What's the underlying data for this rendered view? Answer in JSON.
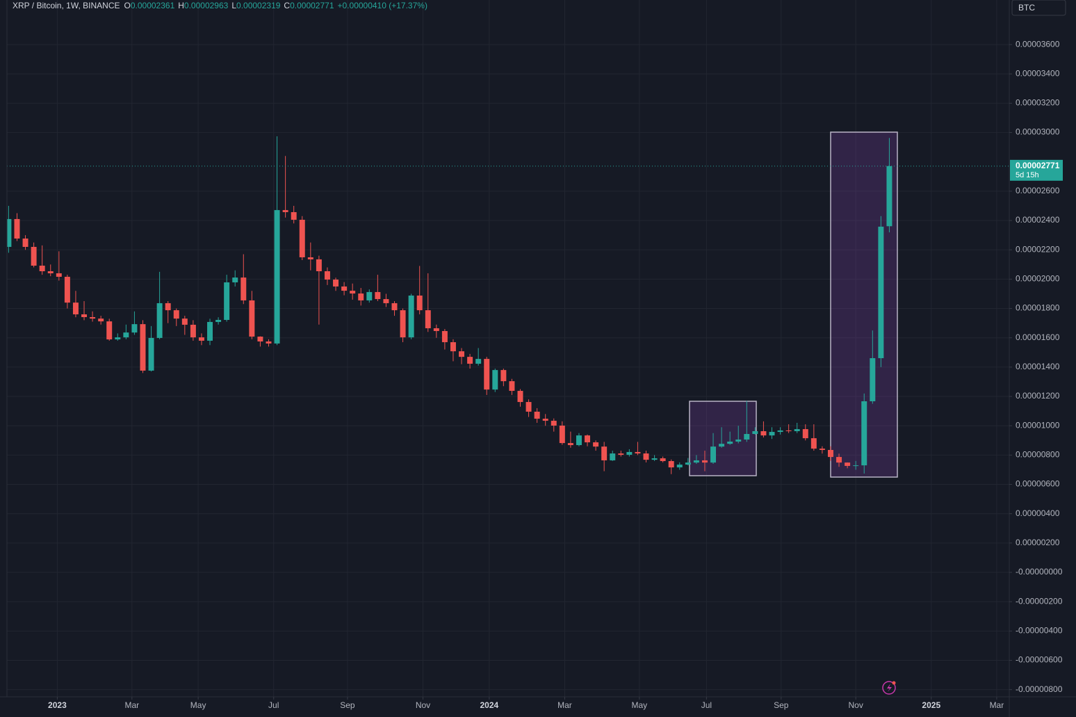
{
  "chart_data": {
    "type": "candlestick",
    "title": "XRP / Bitcoin, 1W, BINANCE",
    "ohlc_legend": [
      {
        "key": "O",
        "value": "0.00002361"
      },
      {
        "key": "H",
        "value": "0.00002963"
      },
      {
        "key": "L",
        "value": "0.00002319"
      },
      {
        "key": "C",
        "value": "0.00002771"
      }
    ],
    "change": "+0.00000410 (+17.37%)",
    "currency": "BTC",
    "price_tag": {
      "label": "0.00002771",
      "countdown": "5d 15h"
    },
    "up_color": "#26a69a",
    "down_color": "#ef5350",
    "grid": true,
    "log_scale": false,
    "x": [
      0,
      1,
      2,
      3,
      4,
      5,
      6,
      7,
      8,
      9,
      10,
      11,
      12,
      13,
      14,
      15,
      16,
      17,
      18,
      19,
      20,
      21,
      22,
      23,
      24,
      25,
      26,
      27,
      28,
      29,
      30,
      31,
      32,
      33,
      34,
      35,
      36,
      37,
      38,
      39,
      40,
      41,
      42,
      43,
      44,
      45,
      46,
      47,
      48,
      49,
      50,
      51,
      52,
      53,
      54,
      55,
      56,
      57,
      58,
      59,
      60,
      61,
      62,
      63,
      64,
      65,
      66,
      67,
      68,
      69,
      70,
      71,
      72,
      73,
      74,
      75,
      76,
      77,
      78,
      79,
      80,
      81,
      82,
      83,
      84,
      85,
      86,
      87,
      88,
      89,
      90,
      91,
      92,
      93,
      94,
      95,
      96,
      97,
      98,
      99,
      100,
      101,
      102,
      103,
      104,
      105
    ],
    "open": [
      2.22e-05,
      2.41e-05,
      2.277e-05,
      2.22e-05,
      2.092e-05,
      2.054e-05,
      2.04e-05,
      2.016e-05,
      1.84e-05,
      1.76e-05,
      1.741e-05,
      1.731e-05,
      1.712e-05,
      1.589e-05,
      1.603e-05,
      1.636e-05,
      1.693e-05,
      1.376e-05,
      1.599e-05,
      1.836e-05,
      1.788e-05,
      1.731e-05,
      1.689e-05,
      1.603e-05,
      1.58e-05,
      1.708e-05,
      1.722e-05,
      1.978e-05,
      2.011e-05,
      1.855e-05,
      1.608e-05,
      1.575e-05,
      1.561e-05,
      2.471e-05,
      2.457e-05,
      2.405e-05,
      2.149e-05,
      2.135e-05,
      2.054e-05,
      1.997e-05,
      1.95e-05,
      1.921e-05,
      1.902e-05,
      1.855e-05,
      1.912e-05,
      1.864e-05,
      1.836e-05,
      1.788e-05,
      1.603e-05,
      1.888e-05,
      1.788e-05,
      1.665e-05,
      1.646e-05,
      1.57e-05,
      1.508e-05,
      1.47e-05,
      1.423e-05,
      1.456e-05,
      1.247e-05,
      1.38e-05,
      1.304e-05,
      1.238e-05,
      1.162e-05,
      1.096e-05,
      1.048e-05,
      1.034e-05,
      1.001e-05,
      8.82e-06,
      8.68e-06,
      9.34e-06,
      8.87e-06,
      8.58e-06,
      7.64e-06,
      8.11e-06,
      8.02e-06,
      8.21e-06,
      8.11e-06,
      7.68e-06,
      7.78e-06,
      7.59e-06,
      7.16e-06,
      7.35e-06,
      7.49e-06,
      7.64e-06,
      7.49e-06,
      8.58e-06,
      8.77e-06,
      8.92e-06,
      9.06e-06,
      9.44e-06,
      9.63e-06,
      9.34e-06,
      9.58e-06,
      9.68e-06,
      9.63e-06,
      9.77e-06,
      9.15e-06,
      8.44e-06,
      8.35e-06,
      7.87e-06,
      7.49e-06,
      7.26e-06,
      7.3e-06,
      1.167e-05,
      1.461e-05,
      2.361e-05
    ],
    "high": [
      2.5e-05,
      2.45e-05,
      2.3e-05,
      2.25e-05,
      2.23e-05,
      2.1e-05,
      2.19e-05,
      2.03e-05,
      1.92e-05,
      1.85e-05,
      1.78e-05,
      1.75e-05,
      1.73e-05,
      1.63e-05,
      1.69e-05,
      1.78e-05,
      1.72e-05,
      1.68e-05,
      2.05e-05,
      1.85e-05,
      1.8e-05,
      1.75e-05,
      1.72e-05,
      1.63e-05,
      1.73e-05,
      1.74e-05,
      2.03e-05,
      2.06e-05,
      2.17e-05,
      1.92e-05,
      1.61e-05,
      1.59e-05,
      2.974e-05,
      2.84e-05,
      2.5e-05,
      2.43e-05,
      2.25e-05,
      2.16e-05,
      2.08e-05,
      2.01e-05,
      1.98e-05,
      1.97e-05,
      1.94e-05,
      1.93e-05,
      2.03e-05,
      1.9e-05,
      1.85e-05,
      1.8e-05,
      1.9e-05,
      2.09e-05,
      2.04e-05,
      1.69e-05,
      1.66e-05,
      1.59e-05,
      1.53e-05,
      1.49e-05,
      1.53e-05,
      1.47e-05,
      1.39e-05,
      1.39e-05,
      1.32e-05,
      1.25e-05,
      1.18e-05,
      1.12e-05,
      1.08e-05,
      1.05e-05,
      1.03e-05,
      9.6e-06,
      9.5e-06,
      9.4e-06,
      9e-06,
      8.9e-06,
      8.3e-06,
      8.3e-06,
      8.4e-06,
      8.9e-06,
      8.3e-06,
      8e-06,
      7.9e-06,
      7.7e-06,
      7.5e-06,
      7.8e-06,
      8e-06,
      8.3e-06,
      9.5e-06,
      9.9e-06,
      9.6e-06,
      1e-05,
      1.17e-05,
      9.9e-06,
      1.03e-05,
      9.9e-06,
      9.9e-06,
      1.01e-05,
      1.02e-05,
      1.01e-05,
      1.01e-05,
      8.6e-06,
      8.6e-06,
      8.1e-06,
      7.5e-06,
      7.6e-06,
      1.22e-05,
      1.65e-05,
      2.43e-05,
      2.963e-05
    ],
    "low": [
      2.18e-05,
      2.26e-05,
      2.2e-05,
      2.08e-05,
      2.03e-05,
      2.02e-05,
      1.99e-05,
      1.8e-05,
      1.74e-05,
      1.72e-05,
      1.71e-05,
      1.69e-05,
      1.58e-05,
      1.58e-05,
      1.59e-05,
      1.62e-05,
      1.36e-05,
      1.37e-05,
      1.59e-05,
      1.7e-05,
      1.68e-05,
      1.62e-05,
      1.58e-05,
      1.55e-05,
      1.55e-05,
      1.69e-05,
      1.71e-05,
      1.95e-05,
      1.83e-05,
      1.59e-05,
      1.54e-05,
      1.54e-05,
      1.55e-05,
      2.42e-05,
      2.38e-05,
      2.13e-05,
      2.06e-05,
      1.69e-05,
      1.96e-05,
      1.92e-05,
      1.89e-05,
      1.86e-05,
      1.82e-05,
      1.84e-05,
      1.85e-05,
      1.81e-05,
      1.75e-05,
      1.57e-05,
      1.59e-05,
      1.76e-05,
      1.64e-05,
      1.6e-05,
      1.52e-05,
      1.44e-05,
      1.42e-05,
      1.39e-05,
      1.41e-05,
      1.21e-05,
      1.23e-05,
      1.27e-05,
      1.21e-05,
      1.13e-05,
      1.06e-05,
      1.02e-05,
      1e-05,
      9.6e-06,
      8.7e-06,
      8.5e-06,
      8.6e-06,
      8.6e-06,
      8.3e-06,
      6.9e-06,
      7.6e-06,
      7.9e-06,
      7.9e-06,
      8e-06,
      7.5e-06,
      7.6e-06,
      7.5e-06,
      6.7e-06,
      7e-06,
      7.3e-06,
      7.4e-06,
      6.9e-06,
      7.4e-06,
      8.5e-06,
      8.7e-06,
      8.8e-06,
      8.9e-06,
      9.4e-06,
      9.2e-06,
      9.1e-06,
      9.4e-06,
      9.5e-06,
      9.5e-06,
      9e-06,
      8.3e-06,
      8.1e-06,
      7.6e-06,
      7.2e-06,
      7.1e-06,
      7e-06,
      6.74e-06,
      1.15e-05,
      1.4e-05,
      2.319e-05
    ],
    "close": [
      2.41e-05,
      2.277e-05,
      2.22e-05,
      2.092e-05,
      2.054e-05,
      2.04e-05,
      2.016e-05,
      1.84e-05,
      1.76e-05,
      1.741e-05,
      1.731e-05,
      1.712e-05,
      1.589e-05,
      1.603e-05,
      1.636e-05,
      1.693e-05,
      1.376e-05,
      1.599e-05,
      1.836e-05,
      1.788e-05,
      1.731e-05,
      1.689e-05,
      1.603e-05,
      1.58e-05,
      1.708e-05,
      1.722e-05,
      1.978e-05,
      2.011e-05,
      1.855e-05,
      1.608e-05,
      1.575e-05,
      1.561e-05,
      2.471e-05,
      2.457e-05,
      2.405e-05,
      2.149e-05,
      2.135e-05,
      2.054e-05,
      1.997e-05,
      1.95e-05,
      1.921e-05,
      1.902e-05,
      1.855e-05,
      1.912e-05,
      1.864e-05,
      1.836e-05,
      1.788e-05,
      1.603e-05,
      1.888e-05,
      1.788e-05,
      1.665e-05,
      1.646e-05,
      1.57e-05,
      1.508e-05,
      1.47e-05,
      1.423e-05,
      1.456e-05,
      1.247e-05,
      1.38e-05,
      1.304e-05,
      1.238e-05,
      1.162e-05,
      1.096e-05,
      1.048e-05,
      1.034e-05,
      1.001e-05,
      8.82e-06,
      8.68e-06,
      9.34e-06,
      8.87e-06,
      8.58e-06,
      7.64e-06,
      8.11e-06,
      8.02e-06,
      8.21e-06,
      8.11e-06,
      7.68e-06,
      7.78e-06,
      7.59e-06,
      7.16e-06,
      7.35e-06,
      7.49e-06,
      7.64e-06,
      7.49e-06,
      8.58e-06,
      8.77e-06,
      8.92e-06,
      9.06e-06,
      9.44e-06,
      9.63e-06,
      9.34e-06,
      9.58e-06,
      9.68e-06,
      9.63e-06,
      9.77e-06,
      9.15e-06,
      8.44e-06,
      8.35e-06,
      7.87e-06,
      7.49e-06,
      7.26e-06,
      7.3e-06,
      1.167e-05,
      1.461e-05,
      2.358e-05,
      2.771e-05
    ],
    "xlim": [
      -0.2,
      119.3
    ],
    "xticks": [
      {
        "value": 5.8,
        "label": "2023"
      },
      {
        "value": 14.7,
        "label": "Mar"
      },
      {
        "value": 22.6,
        "label": "May"
      },
      {
        "value": 31.6,
        "label": "Jul"
      },
      {
        "value": 40.4,
        "label": "Sep"
      },
      {
        "value": 49.4,
        "label": "Nov"
      },
      {
        "value": 57.3,
        "label": "2024"
      },
      {
        "value": 66.3,
        "label": "Mar"
      },
      {
        "value": 75.2,
        "label": "May"
      },
      {
        "value": 83.2,
        "label": "Jul"
      },
      {
        "value": 92.1,
        "label": "Sep"
      },
      {
        "value": 101.0,
        "label": "Nov"
      },
      {
        "value": 110.0,
        "label": "2025"
      },
      {
        "value": 117.8,
        "label": "Mar"
      }
    ],
    "ylim": [
      -8.49e-06,
      3.904e-05
    ],
    "yticks": [
      {
        "value": 3.6e-05,
        "label": "0.00003600"
      },
      {
        "value": 3.4e-05,
        "label": "0.00003400"
      },
      {
        "value": 3.2e-05,
        "label": "0.00003200"
      },
      {
        "value": 3e-05,
        "label": "0.00003000"
      },
      {
        "value": 2.6e-05,
        "label": "0.00002600"
      },
      {
        "value": 2.4e-05,
        "label": "0.00002400"
      },
      {
        "value": 2.2e-05,
        "label": "0.00002200"
      },
      {
        "value": 2e-05,
        "label": "0.00002000"
      },
      {
        "value": 1.8e-05,
        "label": "0.00001800"
      },
      {
        "value": 1.6e-05,
        "label": "0.00001600"
      },
      {
        "value": 1.4e-05,
        "label": "0.00001400"
      },
      {
        "value": 1.2e-05,
        "label": "0.00001200"
      },
      {
        "value": 1e-05,
        "label": "0.00001000"
      },
      {
        "value": 8e-06,
        "label": "0.00000800"
      },
      {
        "value": 6e-06,
        "label": "0.00000600"
      },
      {
        "value": 4e-06,
        "label": "0.00000400"
      },
      {
        "value": 2e-06,
        "label": "0.00000200"
      },
      {
        "value": 0,
        "label": "-0.00000000"
      },
      {
        "value": -2e-06,
        "label": "-0.00000200"
      },
      {
        "value": -4e-06,
        "label": "-0.00000400"
      },
      {
        "value": -6e-06,
        "label": "-0.00000600"
      },
      {
        "value": -8e-06,
        "label": "-0.00000800"
      }
    ]
  }
}
